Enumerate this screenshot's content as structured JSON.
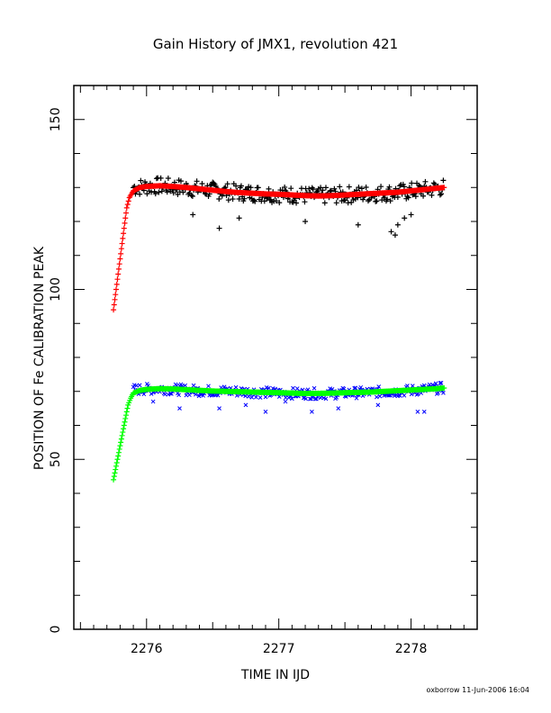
{
  "chart_data": {
    "type": "scatter",
    "title": "Gain History of JMX1, revolution 421",
    "xlabel": "TIME IN IJD",
    "ylabel": "POSITION OF Fe CALIBRATION PEAK",
    "footer": "oxborrow 11-Jun-2006 16:04",
    "xlim": [
      2275.45,
      2278.5
    ],
    "ylim": [
      0,
      160
    ],
    "x_ticks": [
      2276,
      2277,
      2278
    ],
    "x_tick_labels": [
      "2276",
      "2277",
      "2278"
    ],
    "y_ticks": [
      0,
      50,
      100,
      150
    ],
    "y_tick_labels": [
      "0",
      "50",
      "100",
      "150"
    ],
    "grid": false,
    "series": [
      {
        "role": "upper-measured",
        "marker": "plus",
        "color": "#000000",
        "x_start": 2275.9,
        "x_end": 2278.25,
        "base": [
          [
            2275.9,
            130
          ],
          [
            2276.1,
            130.5
          ],
          [
            2276.4,
            129.5
          ],
          [
            2276.7,
            128.5
          ],
          [
            2277.0,
            128
          ],
          [
            2277.3,
            127.5
          ],
          [
            2277.6,
            128
          ],
          [
            2277.9,
            128.5
          ],
          [
            2278.25,
            130
          ]
        ],
        "spread": 2.5,
        "outliers": [
          [
            2276.55,
            118
          ],
          [
            2276.7,
            121
          ],
          [
            2277.2,
            120
          ],
          [
            2277.6,
            119
          ],
          [
            2277.85,
            117
          ],
          [
            2277.88,
            116
          ],
          [
            2277.9,
            119
          ],
          [
            2277.95,
            121
          ],
          [
            2278.0,
            122
          ],
          [
            2276.35,
            122
          ]
        ]
      },
      {
        "role": "upper-fit",
        "marker": "plus",
        "color": "#ff0000",
        "points": [
          [
            2275.75,
            94
          ],
          [
            2275.76,
            97
          ],
          [
            2275.77,
            100
          ],
          [
            2275.78,
            103
          ],
          [
            2275.79,
            106
          ],
          [
            2275.8,
            109
          ],
          [
            2275.81,
            112
          ],
          [
            2275.82,
            115
          ],
          [
            2275.83,
            118
          ],
          [
            2275.84,
            121
          ],
          [
            2275.85,
            124
          ],
          [
            2275.87,
            127
          ],
          [
            2275.9,
            129
          ],
          [
            2275.95,
            130
          ],
          [
            2276.0,
            130.3
          ],
          [
            2276.1,
            130.5
          ],
          [
            2276.2,
            130.3
          ],
          [
            2276.3,
            130
          ],
          [
            2276.4,
            129.6
          ],
          [
            2276.5,
            129.2
          ],
          [
            2276.6,
            128.8
          ],
          [
            2276.7,
            128.5
          ],
          [
            2276.8,
            128.3
          ],
          [
            2276.9,
            128.1
          ],
          [
            2277.0,
            128
          ],
          [
            2277.1,
            127.8
          ],
          [
            2277.2,
            127.6
          ],
          [
            2277.3,
            127.5
          ],
          [
            2277.4,
            127.6
          ],
          [
            2277.5,
            127.8
          ],
          [
            2277.6,
            128
          ],
          [
            2277.7,
            128.2
          ],
          [
            2277.8,
            128.4
          ],
          [
            2277.9,
            128.6
          ],
          [
            2278.0,
            129
          ],
          [
            2278.1,
            129.4
          ],
          [
            2278.2,
            129.8
          ],
          [
            2278.25,
            130
          ]
        ]
      },
      {
        "role": "lower-measured",
        "marker": "cross",
        "color": "#0000ff",
        "x_start": 2275.9,
        "x_end": 2278.25,
        "base": [
          [
            2275.9,
            70.5
          ],
          [
            2276.1,
            70.8
          ],
          [
            2276.4,
            70.2
          ],
          [
            2276.7,
            70
          ],
          [
            2277.0,
            69.5
          ],
          [
            2277.3,
            69.3
          ],
          [
            2277.6,
            69.6
          ],
          [
            2277.9,
            70
          ],
          [
            2278.25,
            71
          ]
        ],
        "spread": 1.6,
        "outliers": [
          [
            2276.05,
            67
          ],
          [
            2276.25,
            65
          ],
          [
            2276.55,
            65
          ],
          [
            2276.75,
            66
          ],
          [
            2276.9,
            64
          ],
          [
            2277.05,
            67
          ],
          [
            2277.25,
            64
          ],
          [
            2277.45,
            65
          ],
          [
            2277.75,
            66
          ],
          [
            2278.05,
            64
          ],
          [
            2278.1,
            64
          ]
        ]
      },
      {
        "role": "lower-fit",
        "marker": "plus",
        "color": "#00ff00",
        "points": [
          [
            2275.75,
            44
          ],
          [
            2275.76,
            46
          ],
          [
            2275.77,
            48
          ],
          [
            2275.78,
            50
          ],
          [
            2275.79,
            52
          ],
          [
            2275.8,
            54
          ],
          [
            2275.81,
            56
          ],
          [
            2275.82,
            58
          ],
          [
            2275.83,
            60
          ],
          [
            2275.84,
            62
          ],
          [
            2275.85,
            64
          ],
          [
            2275.86,
            66
          ],
          [
            2275.88,
            68
          ],
          [
            2275.9,
            69.5
          ],
          [
            2275.95,
            70.3
          ],
          [
            2276.0,
            70.6
          ],
          [
            2276.1,
            70.8
          ],
          [
            2276.2,
            70.7
          ],
          [
            2276.3,
            70.5
          ],
          [
            2276.4,
            70.3
          ],
          [
            2276.5,
            70.1
          ],
          [
            2276.6,
            70
          ],
          [
            2276.7,
            69.9
          ],
          [
            2276.8,
            69.8
          ],
          [
            2276.9,
            69.7
          ],
          [
            2277.0,
            69.6
          ],
          [
            2277.1,
            69.5
          ],
          [
            2277.2,
            69.4
          ],
          [
            2277.3,
            69.4
          ],
          [
            2277.4,
            69.5
          ],
          [
            2277.5,
            69.6
          ],
          [
            2277.6,
            69.7
          ],
          [
            2277.7,
            69.8
          ],
          [
            2277.8,
            70
          ],
          [
            2277.9,
            70.2
          ],
          [
            2278.0,
            70.4
          ],
          [
            2278.1,
            70.6
          ],
          [
            2278.2,
            70.8
          ],
          [
            2278.25,
            71
          ]
        ]
      }
    ]
  }
}
